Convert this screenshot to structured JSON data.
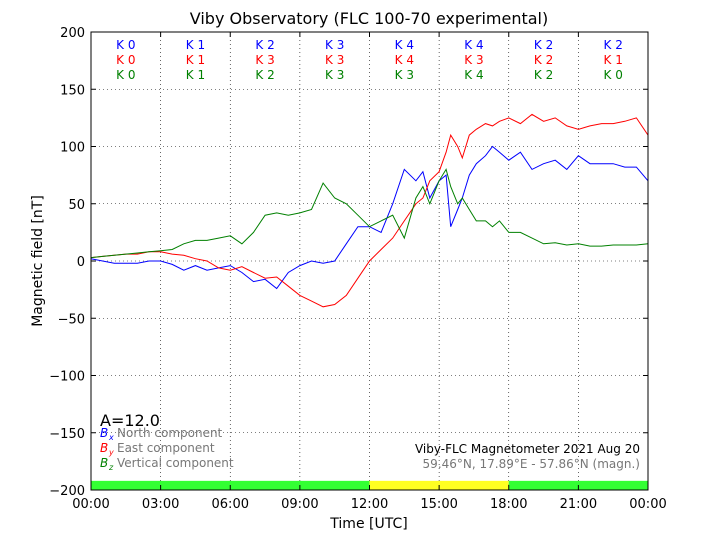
{
  "chart_data": {
    "type": "line",
    "title": "Viby Observatory (FLC 100-70 experimental)",
    "xlabel": "Time [UTC]",
    "ylabel": "Magnetic field [nT]",
    "xlim": [
      0,
      24
    ],
    "ylim": [
      -200,
      200
    ],
    "x_ticks": [
      0,
      3,
      6,
      9,
      12,
      15,
      18,
      21,
      24
    ],
    "x_tick_labels": [
      "00:00",
      "03:00",
      "06:00",
      "09:00",
      "12:00",
      "15:00",
      "18:00",
      "21:00",
      "00:00"
    ],
    "y_ticks": [
      -200,
      -150,
      -100,
      -50,
      0,
      50,
      100,
      150,
      200
    ],
    "y_tick_labels": [
      "−200",
      "−150",
      "−100",
      "−50",
      "0",
      "50",
      "100",
      "150",
      "200"
    ],
    "grid": true,
    "k_index_rows": [
      {
        "component": "north",
        "color": "#0000ff",
        "labels": [
          "K 0",
          "K 1",
          "K 2",
          "K 3",
          "K 4",
          "K 4",
          "K 2",
          "K 2"
        ]
      },
      {
        "component": "east",
        "color": "#ff0000",
        "labels": [
          "K 0",
          "K 1",
          "K 3",
          "K 3",
          "K 4",
          "K 3",
          "K 2",
          "K 1"
        ]
      },
      {
        "component": "vertical",
        "color": "#008000",
        "labels": [
          "K 0",
          "K 1",
          "K 2",
          "K 3",
          "K 3",
          "K 4",
          "K 2",
          "K 0"
        ]
      }
    ],
    "activity_bar": [
      {
        "from": 0,
        "to": 12,
        "color": "#33ff33"
      },
      {
        "from": 12,
        "to": 18,
        "color": "#ffff22"
      },
      {
        "from": 18,
        "to": 24,
        "color": "#33ff33"
      }
    ],
    "a_index": "A=12.0",
    "legend": [
      {
        "symbol": "B",
        "subscript": "x",
        "label": "North component",
        "color": "#0000ff"
      },
      {
        "symbol": "B",
        "subscript": "y",
        "label": "East component",
        "color": "#ff0000"
      },
      {
        "symbol": "B",
        "subscript": "z",
        "label": "Vertical component",
        "color": "#008000"
      }
    ],
    "legend_placement": "bottom-left",
    "info_line_1": "Viby-FLC Magnetometer 2021 Aug 20",
    "info_line_2": "59.46°N, 17.89°E - 57.86°N (magn.)",
    "series": [
      {
        "name": "North component",
        "color": "#0000ff",
        "x": [
          0,
          0.5,
          1,
          1.5,
          2,
          2.5,
          3,
          3.5,
          4,
          4.5,
          5,
          5.5,
          6,
          6.5,
          7,
          7.5,
          8,
          8.5,
          9,
          9.5,
          10,
          10.5,
          11,
          11.5,
          12,
          12.5,
          13,
          13.5,
          14,
          14.3,
          14.6,
          15,
          15.3,
          15.5,
          15.8,
          16,
          16.3,
          16.6,
          17,
          17.3,
          17.6,
          18,
          18.5,
          19,
          19.5,
          20,
          20.5,
          21,
          21.5,
          22,
          22.5,
          23,
          23.5,
          24
        ],
        "y": [
          2,
          0,
          -2,
          -2,
          -2,
          0,
          0,
          -3,
          -8,
          -4,
          -8,
          -6,
          -4,
          -10,
          -18,
          -16,
          -24,
          -10,
          -4,
          0,
          -2,
          0,
          15,
          30,
          30,
          25,
          50,
          80,
          70,
          78,
          55,
          70,
          75,
          30,
          45,
          55,
          75,
          85,
          92,
          100,
          95,
          88,
          95,
          80,
          85,
          88,
          80,
          92,
          85,
          85,
          85,
          82,
          82,
          70
        ]
      },
      {
        "name": "East component",
        "color": "#ff0000",
        "x": [
          0,
          0.5,
          1,
          1.5,
          2,
          2.5,
          3,
          3.5,
          4,
          4.5,
          5,
          5.5,
          6,
          6.5,
          7,
          7.5,
          8,
          8.5,
          9,
          9.5,
          10,
          10.5,
          11,
          11.5,
          12,
          12.5,
          13,
          13.5,
          14,
          14.3,
          14.6,
          15,
          15.3,
          15.5,
          15.8,
          16,
          16.3,
          16.6,
          17,
          17.3,
          17.6,
          18,
          18.5,
          19,
          19.5,
          20,
          20.5,
          21,
          21.5,
          22,
          22.5,
          23,
          23.5,
          24
        ],
        "y": [
          3,
          4,
          5,
          6,
          6,
          8,
          8,
          6,
          5,
          2,
          0,
          -6,
          -8,
          -5,
          -10,
          -15,
          -14,
          -22,
          -30,
          -35,
          -40,
          -38,
          -30,
          -15,
          0,
          10,
          20,
          35,
          50,
          55,
          70,
          78,
          95,
          110,
          100,
          90,
          110,
          115,
          120,
          118,
          122,
          125,
          120,
          128,
          122,
          125,
          118,
          115,
          118,
          120,
          120,
          122,
          125,
          110
        ]
      },
      {
        "name": "Vertical component",
        "color": "#008000",
        "x": [
          0,
          0.5,
          1,
          1.5,
          2,
          2.5,
          3,
          3.5,
          4,
          4.5,
          5,
          5.5,
          6,
          6.5,
          7,
          7.5,
          8,
          8.5,
          9,
          9.5,
          10,
          10.5,
          11,
          11.5,
          12,
          12.5,
          13,
          13.5,
          14,
          14.3,
          14.6,
          15,
          15.3,
          15.5,
          15.8,
          16,
          16.3,
          16.6,
          17,
          17.3,
          17.6,
          18,
          18.5,
          19,
          19.5,
          20,
          20.5,
          21,
          21.5,
          22,
          22.5,
          23,
          23.5,
          24
        ],
        "y": [
          3,
          4,
          5,
          6,
          7,
          8,
          9,
          10,
          15,
          18,
          18,
          20,
          22,
          15,
          25,
          40,
          42,
          40,
          42,
          45,
          68,
          55,
          50,
          40,
          30,
          35,
          40,
          20,
          55,
          65,
          50,
          70,
          80,
          65,
          50,
          55,
          45,
          35,
          35,
          30,
          35,
          25,
          25,
          20,
          15,
          16,
          14,
          15,
          13,
          13,
          14,
          14,
          14,
          15
        ]
      }
    ]
  }
}
